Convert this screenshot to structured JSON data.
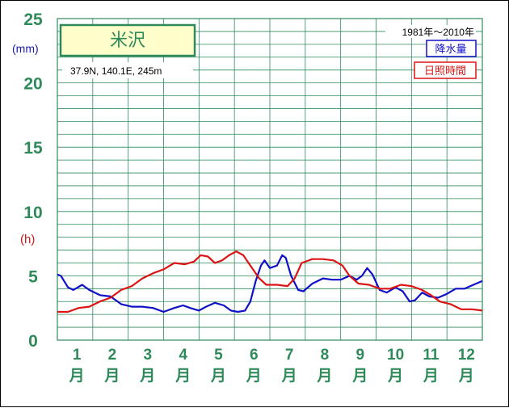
{
  "chart_data": {
    "type": "line",
    "title": "米沢",
    "location": "37.9N,  140.1E,  245m",
    "period": "1981年〜2010年",
    "y_ticks": [
      "25",
      "20",
      "15",
      "10",
      "5",
      "0"
    ],
    "y_unit_left": "(mm)",
    "y_unit_hours": "(h)",
    "ylim": [
      0,
      25
    ],
    "categories": [
      "1",
      "2",
      "3",
      "4",
      "5",
      "6",
      "7",
      "8",
      "9",
      "10",
      "11",
      "12"
    ],
    "month_suffix": "月",
    "grid": true,
    "legend": "top-right",
    "series": [
      {
        "name": "降水量",
        "color": "#1010c8",
        "values": [
          [
            0.0,
            5.1
          ],
          [
            0.1,
            5.0
          ],
          [
            0.3,
            4.1
          ],
          [
            0.45,
            3.9
          ],
          [
            0.7,
            4.3
          ],
          [
            0.9,
            3.9
          ],
          [
            1.2,
            3.5
          ],
          [
            1.5,
            3.4
          ],
          [
            1.8,
            2.8
          ],
          [
            2.1,
            2.6
          ],
          [
            2.4,
            2.6
          ],
          [
            2.7,
            2.5
          ],
          [
            3.0,
            2.2
          ],
          [
            3.3,
            2.5
          ],
          [
            3.55,
            2.7
          ],
          [
            3.75,
            2.5
          ],
          [
            4.0,
            2.3
          ],
          [
            4.2,
            2.6
          ],
          [
            4.45,
            2.9
          ],
          [
            4.7,
            2.7
          ],
          [
            4.9,
            2.3
          ],
          [
            5.1,
            2.2
          ],
          [
            5.3,
            2.3
          ],
          [
            5.45,
            3.0
          ],
          [
            5.6,
            4.6
          ],
          [
            5.75,
            5.8
          ],
          [
            5.85,
            6.2
          ],
          [
            6.0,
            5.6
          ],
          [
            6.2,
            5.8
          ],
          [
            6.35,
            6.6
          ],
          [
            6.45,
            6.4
          ],
          [
            6.6,
            5.0
          ],
          [
            6.8,
            3.9
          ],
          [
            6.95,
            3.8
          ],
          [
            7.2,
            4.4
          ],
          [
            7.5,
            4.8
          ],
          [
            7.75,
            4.7
          ],
          [
            8.0,
            4.7
          ],
          [
            8.25,
            5.0
          ],
          [
            8.45,
            4.7
          ],
          [
            8.6,
            5.0
          ],
          [
            8.75,
            5.6
          ],
          [
            8.9,
            5.1
          ],
          [
            9.1,
            3.9
          ],
          [
            9.3,
            3.7
          ],
          [
            9.55,
            4.1
          ],
          [
            9.75,
            3.8
          ],
          [
            9.95,
            3.0
          ],
          [
            10.1,
            3.1
          ],
          [
            10.3,
            3.7
          ],
          [
            10.5,
            3.4
          ],
          [
            10.75,
            3.3
          ],
          [
            11.0,
            3.6
          ],
          [
            11.25,
            4.0
          ],
          [
            11.5,
            4.0
          ],
          [
            11.75,
            4.3
          ],
          [
            12.0,
            4.6
          ]
        ]
      },
      {
        "name": "日照時間",
        "color": "#dc1414",
        "values": [
          [
            0.0,
            2.2
          ],
          [
            0.3,
            2.2
          ],
          [
            0.6,
            2.5
          ],
          [
            0.9,
            2.6
          ],
          [
            1.2,
            3.0
          ],
          [
            1.5,
            3.3
          ],
          [
            1.8,
            3.9
          ],
          [
            2.1,
            4.2
          ],
          [
            2.4,
            4.8
          ],
          [
            2.7,
            5.2
          ],
          [
            3.0,
            5.5
          ],
          [
            3.3,
            6.0
          ],
          [
            3.6,
            5.9
          ],
          [
            3.85,
            6.1
          ],
          [
            4.05,
            6.6
          ],
          [
            4.25,
            6.5
          ],
          [
            4.45,
            6.0
          ],
          [
            4.65,
            6.2
          ],
          [
            4.85,
            6.6
          ],
          [
            5.05,
            6.9
          ],
          [
            5.25,
            6.6
          ],
          [
            5.45,
            5.8
          ],
          [
            5.7,
            4.8
          ],
          [
            5.9,
            4.3
          ],
          [
            6.2,
            4.3
          ],
          [
            6.5,
            4.2
          ],
          [
            6.7,
            4.8
          ],
          [
            6.9,
            6.0
          ],
          [
            7.2,
            6.3
          ],
          [
            7.5,
            6.3
          ],
          [
            7.8,
            6.2
          ],
          [
            8.05,
            5.8
          ],
          [
            8.25,
            5.0
          ],
          [
            8.5,
            4.4
          ],
          [
            8.8,
            4.3
          ],
          [
            9.1,
            4.0
          ],
          [
            9.4,
            4.0
          ],
          [
            9.7,
            4.3
          ],
          [
            10.0,
            4.2
          ],
          [
            10.3,
            3.9
          ],
          [
            10.55,
            3.5
          ],
          [
            10.8,
            3.0
          ],
          [
            11.1,
            2.8
          ],
          [
            11.4,
            2.4
          ],
          [
            11.7,
            2.4
          ],
          [
            12.0,
            2.3
          ]
        ]
      }
    ]
  }
}
